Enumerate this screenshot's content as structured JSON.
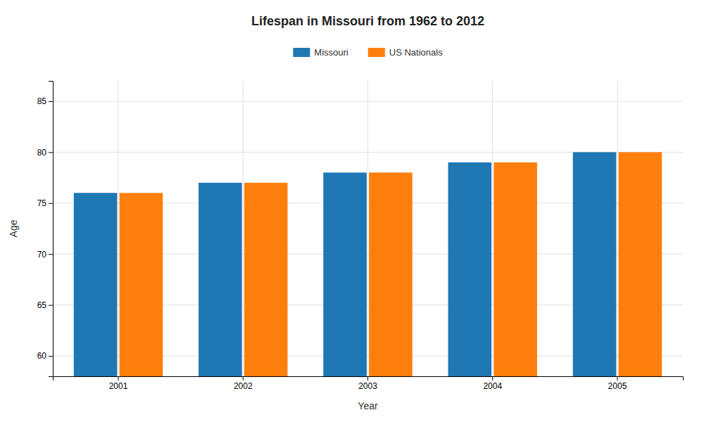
{
  "chart_data": {
    "type": "bar",
    "title": "Lifespan in Missouri from 1962 to 2012",
    "xlabel": "Year",
    "ylabel": "Age",
    "categories": [
      "2001",
      "2002",
      "2003",
      "2004",
      "2005"
    ],
    "series": [
      {
        "name": "Missouri",
        "values": [
          76,
          77,
          78,
          79,
          80
        ]
      },
      {
        "name": "US Nationals",
        "values": [
          76,
          77,
          78,
          79,
          80
        ]
      }
    ],
    "ylim": [
      58,
      87
    ],
    "yticks": [
      60,
      65,
      70,
      75,
      80,
      85
    ],
    "grid": true,
    "legend": "top"
  }
}
